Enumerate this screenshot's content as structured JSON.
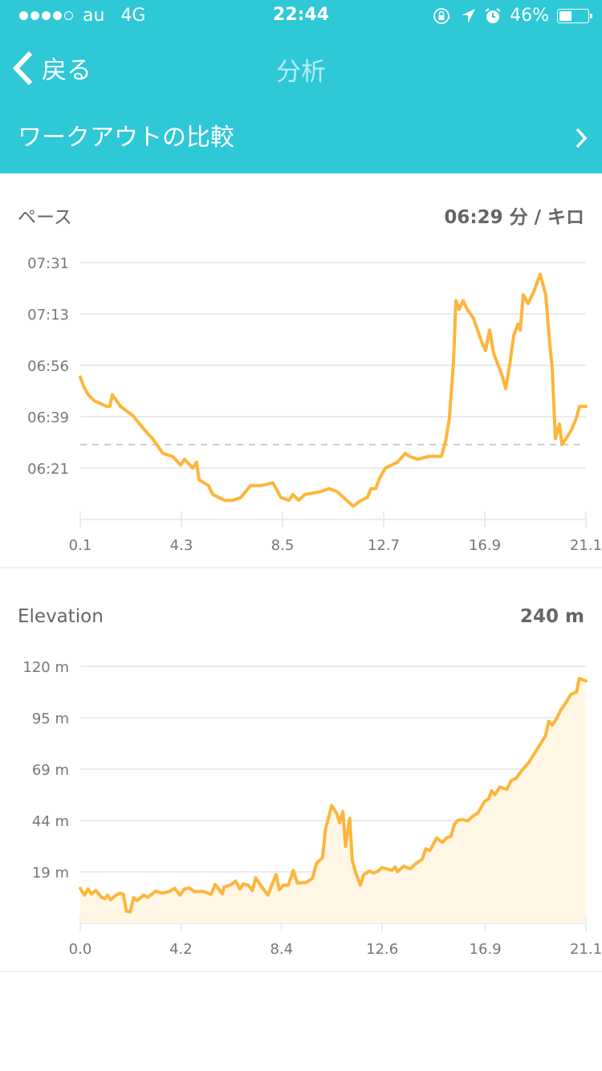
{
  "status_bar": {
    "carrier": "au",
    "network": "4G",
    "time": "22:44",
    "battery": "46%",
    "battery_level": 0.46,
    "signal_bars": 4,
    "signal_max": 5,
    "icons": [
      "orientation-lock-icon",
      "location-arrow-icon",
      "alarm-icon"
    ]
  },
  "nav": {
    "back_label": "戻る",
    "title": "分析"
  },
  "compare": {
    "label": "ワークアウトの比較"
  },
  "colors": {
    "header": "#2EC8D6",
    "line": "#FDB53A",
    "area": "#FFF6E6",
    "grid": "#EBEBEB",
    "average": "#CCCCCC"
  },
  "pace": {
    "title": "ペース",
    "value": "06:29 分 / キロ"
  },
  "elevation": {
    "title": "Elevation",
    "value": "240 m"
  },
  "chart_data": [
    {
      "type": "line",
      "title": "ペース",
      "xlabel": "",
      "ylabel": "",
      "x_unit": "km",
      "y_unit": "seconds per km",
      "xlim": [
        0.1,
        21.1
      ],
      "ylim": [
        363.5,
        451
      ],
      "x_ticks": [
        0.1,
        4.3,
        8.5,
        12.7,
        16.9,
        21.1
      ],
      "x_tick_labels": [
        "0.1",
        "4.3",
        "8.5",
        "12.7",
        "16.9",
        "21.1"
      ],
      "y_ticks": [
        451,
        433.5,
        416,
        398.5,
        381
      ],
      "y_tick_labels": [
        "07:31",
        "07:13",
        "06:56",
        "06:39",
        "06:21"
      ],
      "grid": true,
      "average_line": 389,
      "x": [
        0.1,
        0.23,
        0.43,
        0.67,
        1.2,
        1.33,
        1.43,
        1.77,
        2.27,
        2.77,
        3.1,
        3.53,
        3.93,
        4.27,
        4.43,
        4.77,
        4.93,
        5.03,
        5.43,
        5.6,
        6.1,
        6.43,
        6.77,
        7.17,
        7.6,
        8.1,
        8.43,
        8.77,
        8.93,
        9.17,
        9.43,
        10.1,
        10.43,
        10.77,
        11.03,
        11.43,
        11.77,
        12.03,
        12.17,
        12.37,
        12.5,
        12.77,
        13.27,
        13.6,
        13.77,
        14.1,
        14.6,
        15.1,
        15.27,
        15.43,
        15.6,
        15.7,
        15.83,
        16.0,
        16.17,
        16.43,
        16.77,
        16.93,
        17.1,
        17.27,
        17.6,
        17.77,
        17.93,
        18.1,
        18.27,
        18.37,
        18.5,
        18.7,
        18.93,
        19.2,
        19.43,
        19.6,
        19.7,
        19.83,
        20.0,
        20.1,
        20.27,
        20.5,
        20.7,
        20.83,
        21.1
      ],
      "y": [
        412,
        409,
        406,
        404,
        402,
        402,
        406,
        402,
        399,
        394,
        391,
        386,
        385,
        382,
        384,
        381,
        383,
        377,
        375,
        372,
        370,
        370,
        371,
        375,
        375,
        376,
        371,
        370,
        372,
        370,
        372,
        373,
        374,
        373,
        371,
        368,
        370,
        371,
        374,
        374,
        377,
        381,
        383,
        386,
        385,
        384,
        385,
        385,
        390,
        398,
        417,
        438,
        435,
        438,
        435,
        432,
        424,
        421,
        428,
        420,
        413,
        408,
        416,
        426,
        430,
        428,
        440,
        437,
        441,
        447,
        440,
        423,
        415,
        391,
        396,
        389,
        391,
        394,
        398,
        402,
        402
      ]
    },
    {
      "type": "area",
      "title": "Elevation",
      "xlabel": "",
      "ylabel": "",
      "x_unit": "km",
      "y_unit": "m",
      "xlim": [
        0,
        21.1
      ],
      "ylim": [
        -6.25,
        120
      ],
      "x_ticks": [
        0,
        4.2,
        8.4,
        12.6,
        16.9,
        21.1
      ],
      "x_tick_labels": [
        "0.0",
        "4.2",
        "8.4",
        "12.6",
        "16.9",
        "21.1"
      ],
      "y_ticks": [
        120,
        94.75,
        69.5,
        44.25,
        19
      ],
      "y_tick_labels": [
        "120 m",
        "95 m",
        "69 m",
        "44 m",
        "19 m"
      ],
      "grid": true,
      "x": [
        0,
        0.18,
        0.32,
        0.46,
        0.65,
        0.89,
        1.03,
        1.14,
        1.27,
        1.45,
        1.66,
        1.8,
        1.92,
        2.08,
        2.23,
        2.37,
        2.65,
        2.82,
        3.14,
        3.42,
        3.7,
        3.94,
        4.17,
        4.34,
        4.55,
        4.76,
        5.11,
        5.46,
        5.63,
        5.93,
        6.0,
        6.31,
        6.48,
        6.66,
        6.8,
        7.01,
        7.18,
        7.32,
        7.58,
        7.83,
        8.17,
        8.31,
        8.49,
        8.68,
        8.89,
        9.06,
        9.41,
        9.69,
        9.86,
        10.11,
        10.23,
        10.49,
        10.7,
        10.82,
        10.96,
        11.07,
        11.24,
        11.35,
        11.49,
        11.69,
        11.83,
        12.06,
        12.23,
        12.44,
        12.58,
        13.0,
        13.14,
        13.24,
        13.49,
        13.78,
        13.92,
        14.27,
        14.41,
        14.59,
        14.87,
        15.11,
        15.3,
        15.47,
        15.61,
        15.75,
        15.96,
        16.17,
        16.38,
        16.59,
        16.87,
        17.04,
        17.16,
        17.3,
        17.51,
        17.79,
        18.0,
        18.17,
        18.42,
        18.71,
        18.96,
        19.13,
        19.41,
        19.55,
        19.69,
        19.86,
        20.04,
        20.25,
        20.47,
        20.71,
        20.82,
        21.1
      ],
      "y": [
        10.9,
        7.6,
        10.6,
        8.2,
        9.8,
        6.5,
        5.9,
        7.6,
        5.3,
        7.2,
        8.6,
        8.0,
        -0.3,
        -0.6,
        6.3,
        4.9,
        7.6,
        6.5,
        9.5,
        8.5,
        9.3,
        10.9,
        7.6,
        10.6,
        11.1,
        9.3,
        9.5,
        8.0,
        12.8,
        8.2,
        11.5,
        12.8,
        14.5,
        10.6,
        13.1,
        12.5,
        9.8,
        16.1,
        11.5,
        7.6,
        17.7,
        10.2,
        12.5,
        12.5,
        19.7,
        13.5,
        13.7,
        15.9,
        23.3,
        26.0,
        39.8,
        51.6,
        47.7,
        43.1,
        48.7,
        31.5,
        45.3,
        24.7,
        18.7,
        12.5,
        17.7,
        19.4,
        18.5,
        19.4,
        21.1,
        19.8,
        21.4,
        19.1,
        21.8,
        20.5,
        22.3,
        25.3,
        30.3,
        29.5,
        35.6,
        33.5,
        35.8,
        36.5,
        42.4,
        44.4,
        44.7,
        44.0,
        46.4,
        47.9,
        53.6,
        54.9,
        58.9,
        56.9,
        60.8,
        59.5,
        64.1,
        64.8,
        68.7,
        72.7,
        77.3,
        80.6,
        85.8,
        93.0,
        91.1,
        94.0,
        98.3,
        101.9,
        106.2,
        107.5,
        114.1,
        112.8
      ]
    }
  ]
}
